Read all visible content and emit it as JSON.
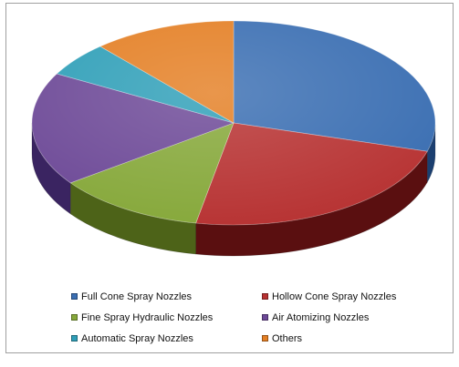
{
  "chart_data": {
    "type": "pie",
    "title": "",
    "labels": [
      "Full Cone Spray Nozzles",
      "Hollow Cone Spray Nozzles",
      "Fine Spray Hydraulic  Nozzles",
      "Air Atomizing Nozzles",
      "Automatic Spray Nozzles",
      "Others"
    ],
    "values": [
      29.5,
      23.5,
      12,
      18,
      5.5,
      11.5
    ],
    "colors": [
      "#3a6eb2",
      "#b73232",
      "#86a83a",
      "#6d4997",
      "#2f9fb8",
      "#e47f24"
    ],
    "side_colors": [
      "#1b3f70",
      "#5a0f10",
      "#4d6318",
      "#3a2461",
      "#185f70",
      "#8a4612"
    ],
    "legend_position": "bottom",
    "style": "3d"
  }
}
